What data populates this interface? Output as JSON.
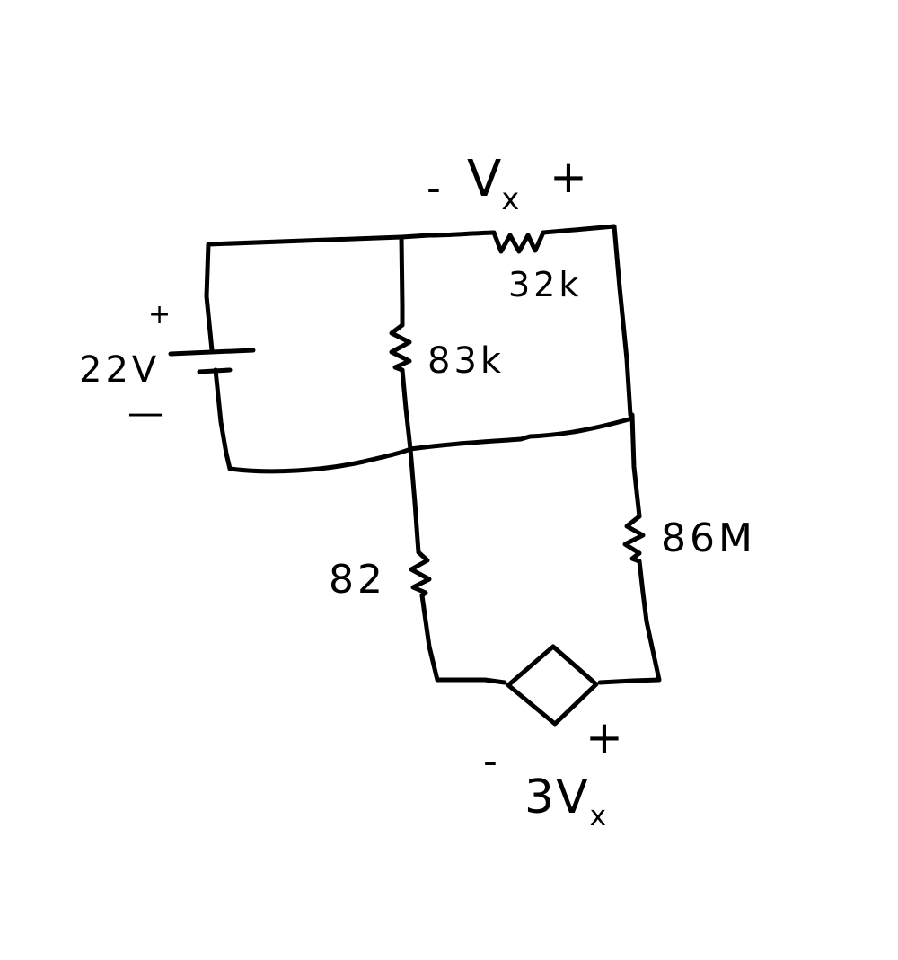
{
  "diagram": {
    "components": [
      {
        "kind": "voltage-source",
        "value": "22V",
        "pos_sign": "+",
        "neg_sign": "—"
      },
      {
        "kind": "resistor",
        "value": "32k",
        "measured_voltage": {
          "neg_sign": "-",
          "symbol": "V",
          "subscript": "x",
          "pos_sign": "+"
        }
      },
      {
        "kind": "resistor",
        "value": "83k"
      },
      {
        "kind": "resistor",
        "value": "82"
      },
      {
        "kind": "resistor",
        "value": "86M"
      },
      {
        "kind": "dependent-voltage-source",
        "coefficient": "3",
        "symbol": "V",
        "subscript": "x",
        "pos_sign": "+",
        "neg_sign": "-"
      }
    ]
  }
}
